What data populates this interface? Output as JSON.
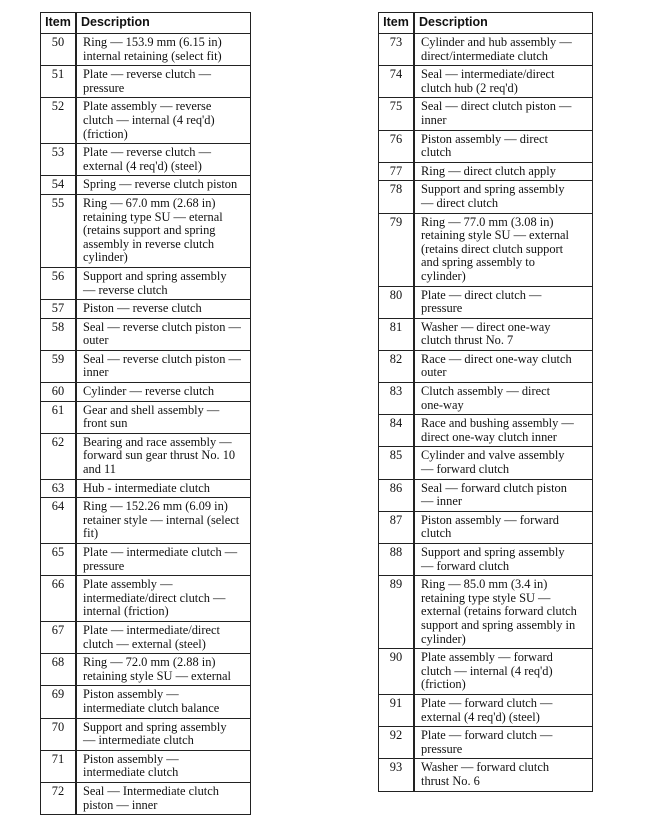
{
  "headers": {
    "item": "Item",
    "description": "Description"
  },
  "left_table": [
    {
      "item": "50",
      "description": "Ring — 153.9 mm (6.15 in)\ninternal retaining (select fit)"
    },
    {
      "item": "51",
      "description": "Plate — reverse clutch —\npressure"
    },
    {
      "item": "52",
      "description": "Plate assembly — reverse\nclutch — internal (4 req'd)\n(friction)"
    },
    {
      "item": "53",
      "description": "Plate — reverse clutch —\nexternal (4 req'd) (steel)"
    },
    {
      "item": "54",
      "description": "Spring — reverse clutch piston"
    },
    {
      "item": "55",
      "description": "Ring — 67.0 mm (2.68 in)\nretaining type SU — eternal\n(retains support and spring\nassembly in reverse clutch\ncylinder)"
    },
    {
      "item": "56",
      "description": "Support and spring assembly\n— reverse clutch"
    },
    {
      "item": "57",
      "description": "Piston — reverse clutch"
    },
    {
      "item": "58",
      "description": "Seal — reverse clutch piston —\nouter"
    },
    {
      "item": "59",
      "description": "Seal — reverse clutch piston —\ninner"
    },
    {
      "item": "60",
      "description": "Cylinder — reverse clutch"
    },
    {
      "item": "61",
      "description": "Gear and shell assembly —\nfront sun"
    },
    {
      "item": "62",
      "description": "Bearing and race assembly —\nforward sun gear thrust No. 10\nand 11"
    },
    {
      "item": "63",
      "description": "Hub - intermediate clutch"
    },
    {
      "item": "64",
      "description": "Ring — 152.26 mm (6.09 in)\nretainer style — internal (select\nfit)"
    },
    {
      "item": "65",
      "description": "Plate — intermediate clutch —\npressure"
    },
    {
      "item": "66",
      "description": "Plate assembly —\nintermediate/direct clutch —\ninternal (friction)"
    },
    {
      "item": "67",
      "description": "Plate — intermediate/direct\nclutch — external (steel)"
    },
    {
      "item": "68",
      "description": "Ring — 72.0 mm (2.88 in)\nretaining style SU — external"
    },
    {
      "item": "69",
      "description": "Piston assembly —\nintermediate clutch balance"
    },
    {
      "item": "70",
      "description": "Support and spring assembly\n— intermediate clutch"
    },
    {
      "item": "71",
      "description": "Piston assembly —\nintermediate clutch"
    },
    {
      "item": "72",
      "description": "Seal — Intermediate clutch\npiston — inner"
    }
  ],
  "right_table": [
    {
      "item": "73",
      "description": "Cylinder and hub assembly —\ndirect/intermediate clutch"
    },
    {
      "item": "74",
      "description": "Seal — intermediate/direct\nclutch hub (2 req'd)"
    },
    {
      "item": "75",
      "description": "Seal — direct clutch piston —\ninner"
    },
    {
      "item": "76",
      "description": "Piston assembly — direct\nclutch"
    },
    {
      "item": "77",
      "description": "Ring — direct clutch apply"
    },
    {
      "item": "78",
      "description": "Support and spring assembly\n— direct clutch"
    },
    {
      "item": "79",
      "description": "Ring — 77.0 mm (3.08 in)\nretaining style SU — external\n(retains direct clutch support\nand spring assembly to\ncylinder)"
    },
    {
      "item": "80",
      "description": "Plate — direct clutch —\npressure"
    },
    {
      "item": "81",
      "description": "Washer — direct one-way\nclutch thrust No. 7"
    },
    {
      "item": "82",
      "description": "Race — direct one-way clutch\nouter"
    },
    {
      "item": "83",
      "description": "Clutch assembly — direct\none-way"
    },
    {
      "item": "84",
      "description": "Race and bushing assembly —\ndirect one-way clutch inner"
    },
    {
      "item": "85",
      "description": "Cylinder and valve assembly\n— forward clutch"
    },
    {
      "item": "86",
      "description": "Seal — forward clutch piston\n— inner"
    },
    {
      "item": "87",
      "description": "Piston assembly — forward\nclutch"
    },
    {
      "item": "88",
      "description": "Support and spring assembly\n— forward clutch"
    },
    {
      "item": "89",
      "description": "Ring — 85.0 mm (3.4 in)\nretaining type style SU —\nexternal (retains forward clutch\nsupport and spring assembly in\ncylinder)"
    },
    {
      "item": "90",
      "description": "Plate assembly — forward\nclutch — internal (4 req'd)\n(friction)"
    },
    {
      "item": "91",
      "description": "Plate — forward clutch —\nexternal (4 req'd) (steel)"
    },
    {
      "item": "92",
      "description": "Plate — forward clutch —\npressure"
    },
    {
      "item": "93",
      "description": "Washer — forward clutch\nthrust No. 6"
    }
  ]
}
